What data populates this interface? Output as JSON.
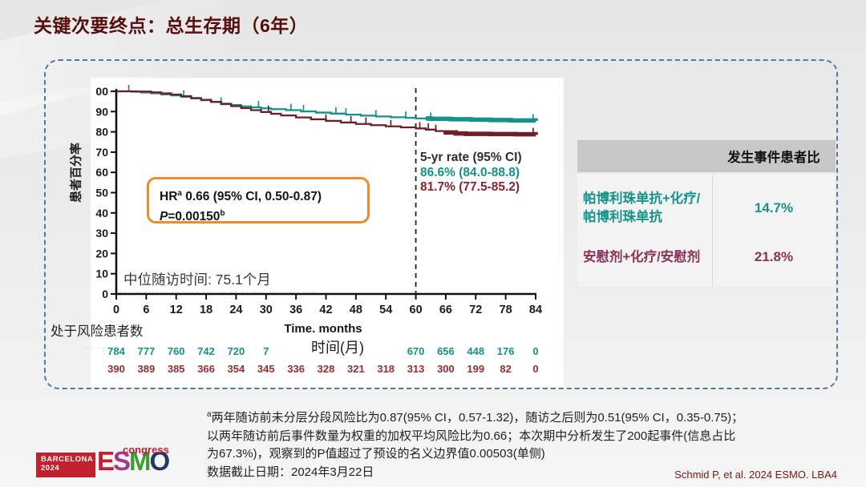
{
  "slide": {
    "title": "关键次要终点：总生存期（6年）",
    "citation": "Schmid P, et al. 2024 ESMO. LBA4",
    "footnotes": {
      "sup1": "a",
      "line1": "两年随访前未分层分段风险比为0.87(95% CI，0.57-1.32)，随访之后则为0.51(95% CI，0.35-0.75)；",
      "line2": "以两年随访前后事件数量为权重的加权平均风险比为0.66；本次期中分析发生了200起事件(信息占比",
      "line3": "为67.3%)，观察到的P值超过了预设的名义边界值0.00503(单侧)",
      "line4": "数据截止日期：2024年3月22日"
    },
    "logo": {
      "venue": "BARCELONA",
      "year": "2024",
      "congress": "congress",
      "letters": [
        {
          "ch": "E",
          "color": "#c3202e"
        },
        {
          "ch": "S",
          "color": "#a23a8c"
        },
        {
          "ch": "M",
          "color": "#3f9b35"
        },
        {
          "ch": "O",
          "color": "#223a63"
        }
      ]
    },
    "covered_text_artifacts": {
      "under_median": "·· ········· ·· ···· ··· ·· ·· ······ ·· ····· ···",
      "under_risk_label": "··· ·· ····"
    }
  },
  "table": {
    "header": "发生事件患者比",
    "rows": [
      {
        "label_line1": "帕博利珠单抗+化疗/",
        "label_line2": "帕博利珠单抗",
        "value": "14.7%",
        "color": "#13938a"
      },
      {
        "label_line1": "安慰剂+化疗/安慰剂",
        "label_line2": "",
        "value": "21.8%",
        "color": "#8a3156"
      }
    ]
  },
  "chart_data": {
    "type": "line",
    "title": "",
    "xlabel": "Time. months",
    "xlabel_overlay": "时间(月)",
    "ylabel": "患者百分率",
    "xlim": [
      0,
      84
    ],
    "ylim": [
      0,
      100
    ],
    "grid": false,
    "legend_position": "none",
    "xticks": [
      0,
      6,
      12,
      18,
      24,
      30,
      36,
      42,
      48,
      54,
      60,
      66,
      72,
      78,
      84
    ],
    "yticks": [
      0,
      10,
      20,
      30,
      40,
      50,
      60,
      70,
      80,
      90,
      100
    ],
    "ytick_labels": [
      "0",
      "10",
      "20",
      "30",
      "40",
      "50",
      "60",
      "70",
      "80",
      "90",
      "00"
    ],
    "reference_line_x": 60,
    "series": [
      {
        "name": "帕博利珠单抗+化疗/帕博利珠单抗",
        "color": "#13938a",
        "bold_from": 62,
        "censor_months": [
          2.5,
          13.5,
          21,
          28.5,
          35,
          37.5,
          44,
          46,
          52,
          58,
          63,
          83.5
        ],
        "points": [
          [
            0,
            100
          ],
          [
            3,
            99.8
          ],
          [
            5,
            99.4
          ],
          [
            7,
            99.0
          ],
          [
            9,
            98.5
          ],
          [
            11,
            98.0
          ],
          [
            13,
            97.3
          ],
          [
            15,
            96.5
          ],
          [
            17,
            95.6
          ],
          [
            19,
            94.7
          ],
          [
            21,
            93.9
          ],
          [
            23,
            93.2
          ],
          [
            25,
            92.6
          ],
          [
            27,
            92.1
          ],
          [
            29,
            91.6
          ],
          [
            31,
            91.2
          ],
          [
            34,
            90.7
          ],
          [
            37,
            90.1
          ],
          [
            40,
            89.5
          ],
          [
            43,
            89.0
          ],
          [
            46,
            88.5
          ],
          [
            49,
            88.0
          ],
          [
            52,
            87.6
          ],
          [
            55,
            87.2
          ],
          [
            58,
            86.9
          ],
          [
            60,
            86.6
          ],
          [
            63,
            86.4
          ],
          [
            67,
            86.2
          ],
          [
            71,
            86.0
          ],
          [
            75,
            85.8
          ],
          [
            79,
            85.6
          ],
          [
            84,
            85.4
          ]
        ]
      },
      {
        "name": "安慰剂+化疗/安慰剂",
        "color": "#6b1f26",
        "bold_from": 66,
        "censor_months": [
          30.5,
          42,
          47,
          50,
          55,
          60.8,
          62.5,
          64,
          83.5
        ],
        "points": [
          [
            0,
            100
          ],
          [
            4,
            99.9
          ],
          [
            7,
            99.5
          ],
          [
            9,
            99.0
          ],
          [
            11,
            98.4
          ],
          [
            13,
            97.6
          ],
          [
            15,
            96.7
          ],
          [
            17,
            95.8
          ],
          [
            19,
            94.8
          ],
          [
            21,
            93.7
          ],
          [
            23,
            92.7
          ],
          [
            25,
            91.7
          ],
          [
            27,
            90.7
          ],
          [
            29,
            89.8
          ],
          [
            31,
            88.9
          ],
          [
            33,
            88.1
          ],
          [
            36,
            87.1
          ],
          [
            39,
            86.2
          ],
          [
            42,
            85.4
          ],
          [
            45,
            84.6
          ],
          [
            48,
            83.9
          ],
          [
            51,
            83.3
          ],
          [
            54,
            82.7
          ],
          [
            57,
            82.2
          ],
          [
            60,
            81.7
          ],
          [
            62,
            81.1
          ],
          [
            64,
            80.4
          ],
          [
            66,
            79.7
          ],
          [
            68,
            79.2
          ],
          [
            70,
            79.0
          ],
          [
            75,
            78.9
          ],
          [
            80,
            78.8
          ],
          [
            84,
            78.5
          ]
        ]
      }
    ],
    "annotations": {
      "hr": {
        "prefix": "HR",
        "sup": "a",
        "rest": " 0.66 (95%  CI, 0.50-0.87)",
        "p": "P",
        "p_value": "=0.00150",
        "p_sup": "b"
      },
      "rate_title": "5-yr rate (95% CI)",
      "rate_pembro": "86.6% (84.0-88.8)",
      "rate_placebo": "81.7% (77.5-85.2)",
      "median_followup": "中位随访时间: 75.1个月"
    },
    "number_at_risk": {
      "label": "处于风险患者数",
      "rows": [
        {
          "color": "#13938a",
          "values": [
            "784",
            "777",
            "760",
            "742",
            "720",
            "7",
            "",
            "",
            "",
            "",
            "670",
            "656",
            "448",
            "176",
            "0"
          ]
        },
        {
          "color": "#9c2c2c",
          "values": [
            "390",
            "389",
            "385",
            "366",
            "354",
            "345",
            "336",
            "328",
            "321",
            "318",
            "313",
            "300",
            "199",
            "82",
            "0"
          ]
        }
      ]
    }
  }
}
